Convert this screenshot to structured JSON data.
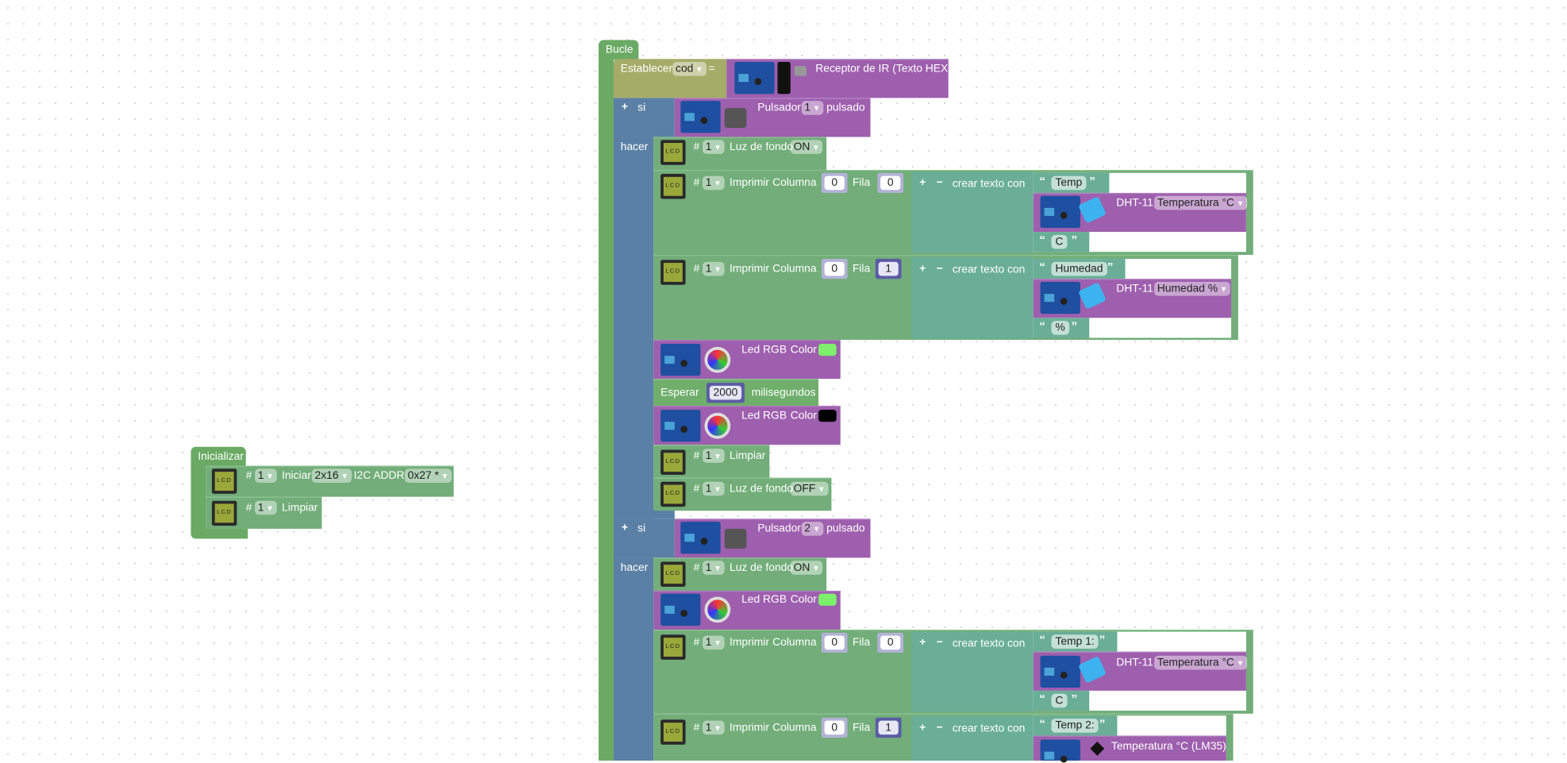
{
  "init": {
    "title": "Inicializar",
    "iniciar": {
      "hash": "#",
      "lcd": "1",
      "label": "Iniciar",
      "size": "2x16",
      "addr_label": "I2C ADDR",
      "addr": "0x27 *"
    },
    "limpiar": {
      "hash": "#",
      "lcd": "1",
      "label": "Limpiar"
    }
  },
  "loop": {
    "title": "Bucle",
    "set": {
      "label": "Establecer",
      "var": "cod",
      "eq": "=",
      "ir": "Receptor de IR (Texto HEX)"
    },
    "if1": {
      "plus": "+",
      "si": "si",
      "hacer": "hacer",
      "button_label": "Pulsador",
      "button": "1",
      "pressed": "pulsado",
      "backlight_on": {
        "hash": "#",
        "lcd": "1",
        "label": "Luz de fondo",
        "value": "ON"
      },
      "print1": {
        "hash": "#",
        "lcd": "1",
        "label": "Imprimir",
        "col_label": "Columna",
        "col": "0",
        "row_label": "Fila",
        "row": "0",
        "plus": "+",
        "minus": "−",
        "join": "crear texto con",
        "s1": "Temp",
        "sensor": "DHT-11",
        "measure": "Temperatura °C",
        "s2": "C"
      },
      "print2": {
        "hash": "#",
        "lcd": "1",
        "label": "Imprimir",
        "col_label": "Columna",
        "col": "0",
        "row_label": "Fila",
        "row": "1",
        "plus": "+",
        "minus": "−",
        "join": "crear texto con",
        "s1": "Humedad",
        "sensor": "DHT-11",
        "measure": "Humedad %",
        "s2": "%"
      },
      "led1": {
        "label": "Led RGB",
        "color_label": "Color",
        "color": "#7cf06a"
      },
      "wait": {
        "label": "Esperar",
        "value": "2000",
        "unit": "milisegundos"
      },
      "led2": {
        "label": "Led RGB",
        "color_label": "Color",
        "color": "#000000"
      },
      "clear": {
        "hash": "#",
        "lcd": "1",
        "label": "Limpiar"
      },
      "backlight_off": {
        "hash": "#",
        "lcd": "1",
        "label": "Luz de fondo",
        "value": "OFF"
      }
    },
    "if2": {
      "plus": "+",
      "si": "si",
      "hacer": "hacer",
      "button_label": "Pulsador",
      "button": "2",
      "pressed": "pulsado",
      "backlight_on": {
        "hash": "#",
        "lcd": "1",
        "label": "Luz de fondo",
        "value": "ON"
      },
      "led1": {
        "label": "Led RGB",
        "color_label": "Color",
        "color": "#7cf06a"
      },
      "print1": {
        "hash": "#",
        "lcd": "1",
        "label": "Imprimir",
        "col_label": "Columna",
        "col": "0",
        "row_label": "Fila",
        "row": "0",
        "plus": "+",
        "minus": "−",
        "join": "crear texto con",
        "s1": "Temp 1:",
        "sensor": "DHT-11",
        "measure": "Temperatura °C",
        "s2": "C"
      },
      "print2": {
        "hash": "#",
        "lcd": "1",
        "label": "Imprimir",
        "col_label": "Columna",
        "col": "0",
        "row_label": "Fila",
        "row": "1",
        "plus": "+",
        "minus": "−",
        "join": "crear texto con",
        "s1": "Temp 2:",
        "sensor_lm35": "Temperatura °C (LM35)"
      }
    }
  },
  "lcd_text": "LCD",
  "quote_open": "“",
  "quote_close": "”"
}
